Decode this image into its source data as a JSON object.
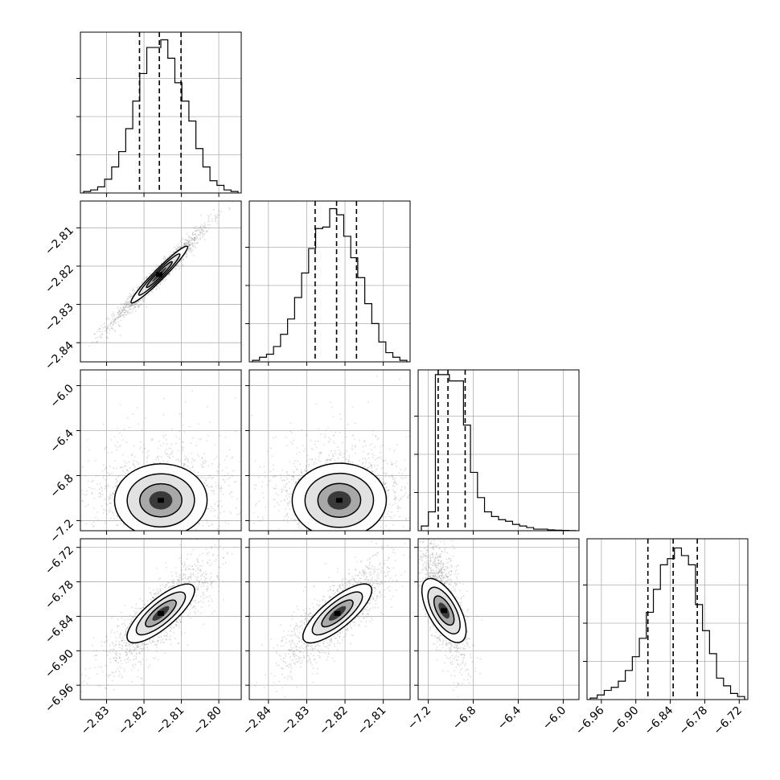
{
  "chart_data": {
    "type": "corner",
    "description_of_layout": "4x4 lower-triangular corner plot",
    "grid": true,
    "quantile_lines": "dashed",
    "parameters": [
      {
        "range": [
          -2.837,
          -2.794
        ],
        "ticks": [
          -2.83,
          -2.82,
          -2.81,
          -2.8
        ],
        "tick_labels": [
          "−2.83",
          "−2.82",
          "−2.81",
          "−2.80"
        ],
        "quantiles": [
          -2.8212,
          -2.8159,
          -2.8101
        ],
        "hist": [
          1,
          2,
          4,
          9,
          17,
          27,
          42,
          60,
          78,
          95,
          95,
          100,
          88,
          72,
          60,
          47,
          29,
          17,
          8,
          5,
          2,
          1
        ],
        "hist_ymax": 105
      },
      {
        "range": [
          -2.845,
          -2.803
        ],
        "ticks": [
          -2.84,
          -2.83,
          -2.82,
          -2.81
        ],
        "tick_labels": [
          "−2.84",
          "−2.83",
          "−2.82",
          "−2.81"
        ],
        "quantiles": [
          -2.8278,
          -2.8222,
          -2.817
        ],
        "hist": [
          1,
          3,
          5,
          10,
          18,
          28,
          42,
          58,
          74,
          87,
          88,
          100,
          96,
          82,
          68,
          55,
          38,
          25,
          13,
          6,
          3,
          1
        ],
        "hist_ymax": 105
      },
      {
        "range": [
          -7.29,
          -5.86
        ],
        "ticks": [
          -7.2,
          -6.8,
          -6.4,
          -6.0
        ],
        "tick_labels": [
          "−7.2",
          "−6.8",
          "−6.4",
          "−6.0"
        ],
        "quantiles": [
          -7.112,
          -7.025,
          -6.872
        ],
        "hist": [
          3,
          12,
          99,
          99,
          95,
          95,
          67,
          37,
          21,
          12,
          9,
          7,
          6,
          4,
          3,
          2,
          1,
          1,
          0.5,
          0.3,
          0.2,
          0.1
        ],
        "hist_ymax": 102
      },
      {
        "range": [
          -6.985,
          -6.705
        ],
        "ticks": [
          -6.96,
          -6.9,
          -6.84,
          -6.78,
          -6.72
        ],
        "tick_labels": [
          "−6.96",
          "−6.90",
          "−6.84",
          "−6.78",
          "−6.72"
        ],
        "quantiles": [
          -6.879,
          -6.835,
          -6.793
        ],
        "hist": [
          1,
          3,
          6,
          8,
          12,
          19,
          28,
          40,
          57,
          72,
          88,
          92,
          99,
          94,
          88,
          62,
          45,
          30,
          14,
          9,
          4,
          2
        ],
        "hist_ymax": 105
      }
    ],
    "pairs": [
      {
        "row": 1,
        "col": 0,
        "center": [
          -2.8159,
          -2.8222
        ],
        "sd": [
          0.0045,
          0.0045
        ],
        "rho": 0.98,
        "skew": 0
      },
      {
        "row": 2,
        "col": 0,
        "center": [
          -2.8155,
          -7.02
        ],
        "sd": [
          0.0064,
          0.13
        ],
        "rho": 0.03,
        "skew": 1
      },
      {
        "row": 2,
        "col": 1,
        "center": [
          -2.8215,
          -7.02
        ],
        "sd": [
          0.0064,
          0.13
        ],
        "rho": 0.03,
        "skew": 1
      },
      {
        "row": 3,
        "col": 0,
        "center": [
          -2.8155,
          -6.835
        ],
        "sd": [
          0.0048,
          0.032
        ],
        "rho": 0.82,
        "skew": 0
      },
      {
        "row": 3,
        "col": 1,
        "center": [
          -2.822,
          -6.835
        ],
        "sd": [
          0.0048,
          0.032
        ],
        "rho": 0.82,
        "skew": 0
      },
      {
        "row": 3,
        "col": 2,
        "center": [
          -7.06,
          -6.83
        ],
        "sd": [
          0.07,
          0.035
        ],
        "rho": -0.7,
        "skew": 1
      }
    ]
  }
}
